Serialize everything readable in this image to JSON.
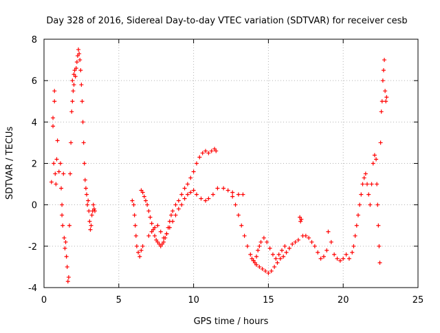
{
  "chart_data": {
    "type": "scatter",
    "title": "Day 328 of 2016, Sidereal Day-to-day VTEC variation (SDTVAR) for receiver cesb",
    "xlabel": "GPS time / hours",
    "ylabel": "SDTVAR / TECUs",
    "xlim": [
      0,
      25
    ],
    "ylim": [
      -4,
      8
    ],
    "xticks": [
      0,
      5,
      10,
      15,
      20,
      25
    ],
    "yticks": [
      -4,
      -2,
      0,
      2,
      4,
      6,
      8
    ],
    "grid": true,
    "marker": "+",
    "color": "#ff0000",
    "series": [
      {
        "name": "SDTVAR",
        "x": [
          0.5,
          0.6,
          0.6,
          0.7,
          0.7,
          0.65,
          0.75,
          0.8,
          0.85,
          0.9,
          1.0,
          1.1,
          1.15,
          1.2,
          1.3,
          1.2,
          1.25,
          1.35,
          1.4,
          1.45,
          1.5,
          1.55,
          1.6,
          1.65,
          1.7,
          1.75,
          1.8,
          1.85,
          1.9,
          1.95,
          1.9,
          2.0,
          2.0,
          2.05,
          2.1,
          2.15,
          2.2,
          2.25,
          2.3,
          2.35,
          2.4,
          2.45,
          2.5,
          2.55,
          2.6,
          2.65,
          2.7,
          2.75,
          2.8,
          2.85,
          2.9,
          2.95,
          3.0,
          3.05,
          3.1,
          3.15,
          3.2,
          3.25,
          3.3,
          3.35,
          3.4,
          5.9,
          6.0,
          6.05,
          6.1,
          6.15,
          6.2,
          6.3,
          6.4,
          6.5,
          6.6,
          6.5,
          6.6,
          6.7,
          6.8,
          6.9,
          7.0,
          7.1,
          7.2,
          7.3,
          7.4,
          7.5,
          7.6,
          7.7,
          7.8,
          7.9,
          8.0,
          8.1,
          8.2,
          8.3,
          8.4,
          8.5,
          8.6,
          8.8,
          9.0,
          9.2,
          9.4,
          9.6,
          9.8,
          10.0,
          10.2,
          10.4,
          10.6,
          10.8,
          11.0,
          11.2,
          11.4,
          11.5,
          7.0,
          7.2,
          7.4,
          7.6,
          7.8,
          8.0,
          8.2,
          8.4,
          8.6,
          8.8,
          9.0,
          9.2,
          9.4,
          9.6,
          9.8,
          10.0,
          10.2,
          10.5,
          10.8,
          11.0,
          11.3,
          11.6,
          12.0,
          12.3,
          12.6,
          13.0,
          13.3,
          12.6,
          12.8,
          13.0,
          13.2,
          13.4,
          13.6,
          13.8,
          14.0,
          14.2,
          14.4,
          14.6,
          14.8,
          15.0,
          15.2,
          15.4,
          15.6,
          15.8,
          16.0,
          16.2,
          16.4,
          16.6,
          16.8,
          17.0,
          13.9,
          14.0,
          14.1,
          14.2,
          14.3,
          14.4,
          14.5,
          14.7,
          14.9,
          15.1,
          15.3,
          15.5,
          15.7,
          15.9,
          16.1,
          17.1,
          17.15,
          17.2,
          17.3,
          17.5,
          17.7,
          17.9,
          18.1,
          18.3,
          18.5,
          18.7,
          18.9,
          19.0,
          19.2,
          19.4,
          19.6,
          19.8,
          20.0,
          20.2,
          20.4,
          20.6,
          20.7,
          20.8,
          20.9,
          21.0,
          21.1,
          21.2,
          21.3,
          21.4,
          21.5,
          21.6,
          21.7,
          21.8,
          21.9,
          22.0,
          22.1,
          22.2,
          22.25,
          22.3,
          22.35,
          22.4,
          22.45,
          22.5,
          22.55,
          22.6,
          22.65,
          22.7,
          22.75,
          22.8,
          22.85,
          22.9
        ],
        "y": [
          1.1,
          3.8,
          4.2,
          5.5,
          5.0,
          2.0,
          1.5,
          1.0,
          2.2,
          3.1,
          1.6,
          2.0,
          0.8,
          0.0,
          1.5,
          -0.5,
          -1.0,
          -1.6,
          -2.1,
          -1.8,
          -2.5,
          -3.0,
          -3.7,
          -3.5,
          -1.0,
          1.5,
          3.0,
          4.5,
          5.0,
          5.5,
          6.0,
          6.3,
          5.8,
          6.5,
          6.2,
          6.6,
          6.9,
          7.2,
          7.5,
          7.3,
          7.0,
          6.5,
          5.8,
          5.0,
          4.0,
          3.0,
          2.0,
          1.2,
          0.8,
          0.5,
          0.0,
          0.2,
          -0.3,
          -0.8,
          -1.2,
          -1.0,
          -0.5,
          -0.3,
          0.0,
          -0.2,
          -0.3,
          0.2,
          0.0,
          -0.5,
          -1.0,
          -1.5,
          -2.0,
          -2.3,
          -2.5,
          -2.2,
          -2.0,
          0.7,
          0.6,
          0.4,
          0.2,
          0.0,
          -0.3,
          -0.6,
          -0.9,
          -1.2,
          -1.5,
          -1.7,
          -1.8,
          -1.9,
          -2.0,
          -1.9,
          -1.8,
          -1.6,
          -1.4,
          -1.1,
          -0.8,
          -0.5,
          -0.3,
          0.0,
          0.2,
          0.5,
          0.8,
          1.0,
          1.3,
          1.6,
          2.0,
          2.3,
          2.5,
          2.6,
          2.5,
          2.6,
          2.7,
          2.6,
          -1.5,
          -1.3,
          -1.1,
          -1.0,
          -1.3,
          -1.6,
          -1.4,
          -1.1,
          -0.8,
          -0.5,
          -0.2,
          0.0,
          0.3,
          0.5,
          0.6,
          0.7,
          0.5,
          0.3,
          0.2,
          0.3,
          0.5,
          0.8,
          0.8,
          0.7,
          0.6,
          0.5,
          0.5,
          0.4,
          0.0,
          -0.5,
          -1.0,
          -1.5,
          -2.0,
          -2.4,
          -2.7,
          -2.9,
          -3.0,
          -3.1,
          -3.2,
          -3.3,
          -3.2,
          -3.0,
          -2.8,
          -2.6,
          -2.5,
          -2.3,
          -2.1,
          -1.9,
          -1.8,
          -1.7,
          -2.6,
          -2.7,
          -2.8,
          -2.5,
          -2.2,
          -2.0,
          -1.8,
          -1.6,
          -1.8,
          -2.1,
          -2.4,
          -2.6,
          -2.4,
          -2.2,
          -2.0,
          -0.6,
          -0.8,
          -0.7,
          -1.5,
          -1.5,
          -1.6,
          -1.8,
          -2.0,
          -2.3,
          -2.6,
          -2.5,
          -2.2,
          -1.3,
          -1.8,
          -2.4,
          -2.6,
          -2.7,
          -2.6,
          -2.4,
          -2.6,
          -2.3,
          -2.0,
          -1.5,
          -1.0,
          -0.5,
          0.0,
          0.5,
          1.0,
          1.3,
          1.5,
          1.0,
          0.5,
          0.0,
          1.0,
          2.0,
          2.4,
          2.2,
          1.0,
          0.0,
          -1.0,
          -2.0,
          -2.8,
          3.0,
          4.5,
          5.0,
          6.0,
          6.5,
          7.0,
          5.5,
          5.0,
          5.2
        ]
      }
    ]
  }
}
